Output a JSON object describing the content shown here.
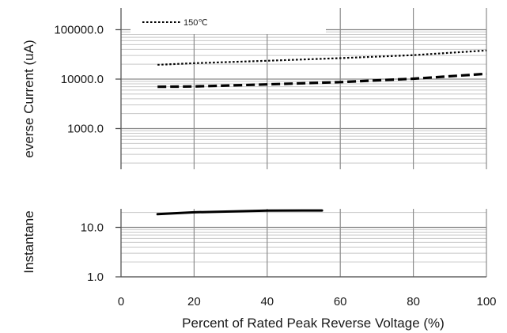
{
  "chart_data": {
    "type": "line",
    "xlabel": "Percent of  Rated Peak Reverse Voltage (%)",
    "ylabel_top": "everse Current (uA)",
    "ylabel_bottom": "Instantane",
    "x_ticks": [
      "0",
      "20",
      "40",
      "60",
      "80",
      "100"
    ],
    "y_ticks": [
      "100000.0",
      "10000.0",
      "1000.0",
      "10.0",
      "1.0"
    ],
    "xlim": [
      0,
      100
    ],
    "y_scale": "log",
    "ylim": [
      1,
      100000
    ],
    "grid": true,
    "legend": {
      "position": "top-left",
      "entries": [
        {
          "label": "150℃",
          "style": "dotted"
        }
      ]
    },
    "series": [
      {
        "name": "150℃",
        "style": "dotted",
        "stroke": "#000000",
        "x": [
          10,
          20,
          40,
          60,
          80,
          100
        ],
        "y": [
          19500,
          21000,
          23500,
          26500,
          30500,
          38000
        ]
      },
      {
        "style": "dashed",
        "stroke": "#000000",
        "x": [
          10,
          20,
          40,
          60,
          80,
          100
        ],
        "y": [
          7000,
          7100,
          7800,
          8700,
          10200,
          12800
        ]
      },
      {
        "style": "solid",
        "stroke": "#000000",
        "x": [
          10,
          20,
          40,
          55
        ],
        "y": [
          18.5,
          20.2,
          21.8,
          22.0
        ]
      }
    ]
  }
}
